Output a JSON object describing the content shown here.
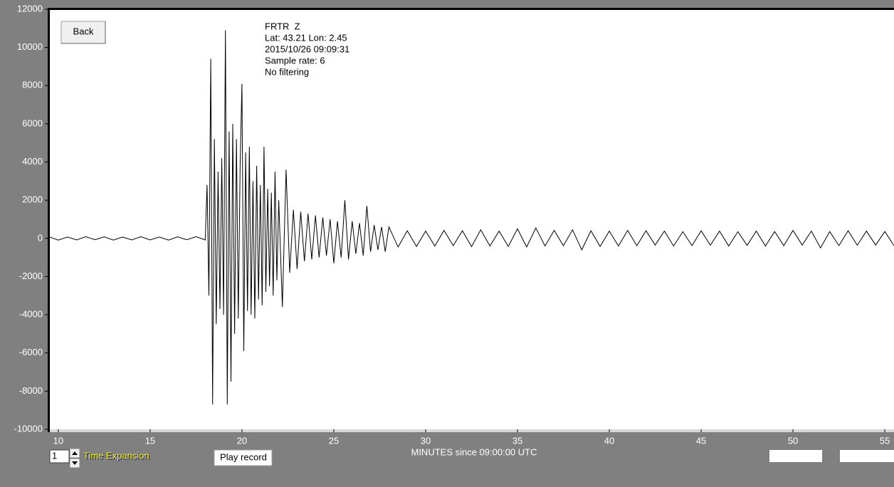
{
  "chart_data": {
    "type": "line",
    "x_label": "MINUTES since 09:00:00 UTC",
    "xlim": [
      9.5,
      55.5
    ],
    "xticks": [
      10,
      15,
      20,
      25,
      30,
      35,
      40,
      45,
      50,
      55
    ],
    "ylim": [
      -10000,
      12000
    ],
    "yticks": [
      -10000,
      -8000,
      -6000,
      -4000,
      -2000,
      0,
      2000,
      4000,
      6000,
      8000,
      10000,
      12000
    ],
    "color": "#000000",
    "x": [
      9.5,
      10,
      10.5,
      11,
      11.5,
      12,
      12.5,
      13,
      13.5,
      14,
      14.5,
      15,
      15.5,
      16,
      16.5,
      17,
      17.5,
      18,
      18.1,
      18.2,
      18.3,
      18.4,
      18.5,
      18.6,
      18.7,
      18.8,
      18.9,
      19,
      19.1,
      19.2,
      19.3,
      19.4,
      19.5,
      19.6,
      19.7,
      19.8,
      19.9,
      20,
      20.1,
      20.2,
      20.3,
      20.4,
      20.5,
      20.6,
      20.7,
      20.8,
      20.9,
      21,
      21.1,
      21.2,
      21.3,
      21.4,
      21.5,
      21.6,
      21.7,
      21.8,
      21.9,
      22,
      22.2,
      22.4,
      22.6,
      22.8,
      23,
      23.2,
      23.4,
      23.6,
      23.8,
      24,
      24.2,
      24.4,
      24.6,
      24.8,
      25,
      25.2,
      25.4,
      25.6,
      25.8,
      26,
      26.2,
      26.4,
      26.6,
      26.8,
      27,
      27.2,
      27.4,
      27.6,
      27.8,
      28,
      28.5,
      29,
      29.5,
      30,
      30.5,
      31,
      31.5,
      32,
      32.5,
      33,
      33.5,
      34,
      34.5,
      35,
      35.5,
      36,
      36.5,
      37,
      37.5,
      38,
      38.5,
      39,
      39.5,
      40,
      40.5,
      41,
      41.5,
      42,
      42.5,
      43,
      43.5,
      44,
      44.5,
      45,
      45.5,
      46,
      46.5,
      47,
      47.5,
      48,
      48.5,
      49,
      49.5,
      50,
      50.5,
      51,
      51.5,
      52,
      52.5,
      53,
      53.5,
      54,
      54.5,
      55,
      55.5
    ],
    "values": [
      80,
      -90,
      70,
      -80,
      90,
      -70,
      80,
      -90,
      70,
      -80,
      90,
      -80,
      70,
      -90,
      80,
      -70,
      90,
      -80,
      2800,
      -3000,
      9400,
      -8700,
      5200,
      -4500,
      3500,
      -3700,
      4200,
      -4000,
      10900,
      -8700,
      5600,
      -7500,
      6000,
      -5000,
      5200,
      -4200,
      3900,
      8100,
      -5900,
      4500,
      -3800,
      4800,
      -4000,
      3000,
      -4200,
      3800,
      -3200,
      2800,
      -3500,
      4800,
      -2800,
      2600,
      -2500,
      2400,
      -3000,
      3500,
      -2200,
      2000,
      -3600,
      3600,
      -1800,
      1500,
      -1600,
      1400,
      -1200,
      1300,
      -1100,
      1200,
      -1000,
      1100,
      -900,
      1000,
      -1300,
      900,
      -1000,
      2000,
      -1100,
      900,
      -800,
      800,
      -900,
      1700,
      -700,
      700,
      -600,
      600,
      -700,
      600,
      -450,
      400,
      -420,
      380,
      -400,
      420,
      -380,
      400,
      -430,
      450,
      -400,
      380,
      -420,
      500,
      -450,
      550,
      -400,
      420,
      -380,
      450,
      -600,
      400,
      -420,
      380,
      -400,
      420,
      -380,
      400,
      -350,
      380,
      -400,
      350,
      -380,
      400,
      -360,
      380,
      -400,
      350,
      -370,
      380,
      -400,
      360,
      -380,
      420,
      -350,
      380,
      -500,
      360,
      -380,
      400,
      -360,
      380,
      -350,
      360,
      -380
    ]
  },
  "ui": {
    "back": "Back",
    "info": [
      "FRTR  Z",
      "Lat: 43.21 Lon: 2.45",
      "2015/10/26 09:09:31",
      "Sample rate: 6",
      "No filtering"
    ],
    "expansion_value": "1",
    "expansion_label": "Time Expansion",
    "play": "Play record"
  }
}
